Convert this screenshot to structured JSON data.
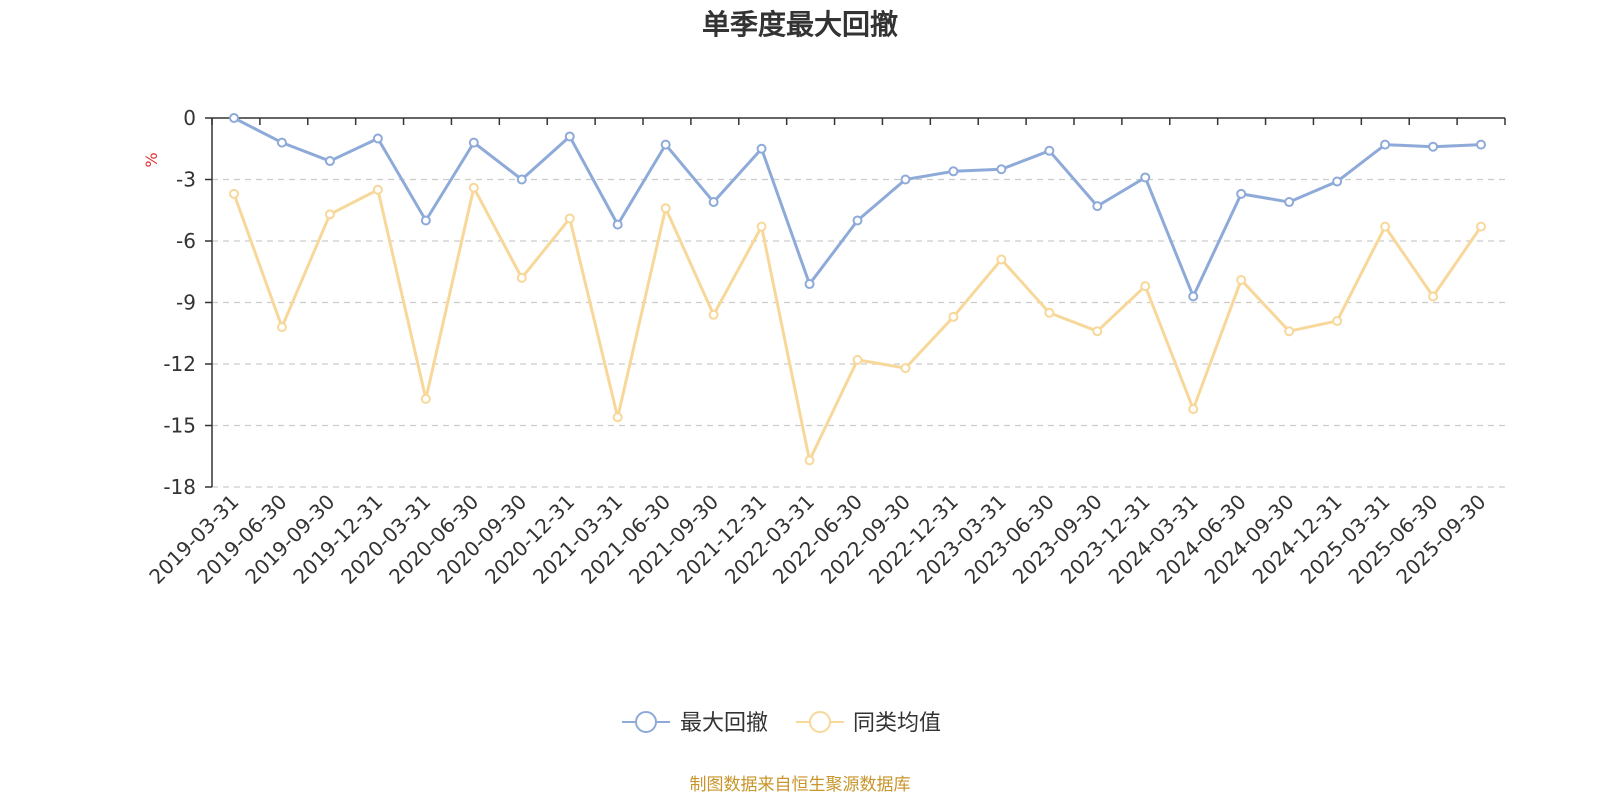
{
  "chart_data": {
    "type": "line",
    "title": "单季度最大回撤",
    "ylabel": "%",
    "ylim": [
      -18,
      0
    ],
    "yticks": [
      0,
      -3,
      -6,
      -9,
      -12,
      -15,
      -18
    ],
    "grid": true,
    "legend_position": "bottom",
    "source": "制图数据来自恒生聚源数据库",
    "categories": [
      "2019-03-31",
      "2019-06-30",
      "2019-09-30",
      "2019-12-31",
      "2020-03-31",
      "2020-06-30",
      "2020-09-30",
      "2020-12-31",
      "2021-03-31",
      "2021-06-30",
      "2021-09-30",
      "2021-12-31",
      "2022-03-31",
      "2022-06-30",
      "2022-09-30",
      "2022-12-31",
      "2023-03-31",
      "2023-06-30",
      "2023-09-30",
      "2023-12-31",
      "2024-03-31",
      "2024-06-30",
      "2024-09-30",
      "2024-12-31",
      "2025-03-31",
      "2025-06-30",
      "2025-09-30"
    ],
    "series": [
      {
        "name": "最大回撤",
        "color": "#8eaad8",
        "values": [
          0,
          -1.2,
          -2.1,
          -1.0,
          -5.0,
          -1.2,
          -3.0,
          -0.9,
          -5.2,
          -1.3,
          -4.1,
          -1.5,
          -8.1,
          -5.0,
          -3.0,
          -2.6,
          -2.5,
          -1.6,
          -4.3,
          -2.9,
          -8.7,
          -3.7,
          -4.1,
          -3.1,
          -1.3,
          -1.4,
          -1.3
        ]
      },
      {
        "name": "同类均值",
        "color": "#f8d89a",
        "values": [
          -3.7,
          -10.2,
          -4.7,
          -3.5,
          -13.7,
          -3.4,
          -7.8,
          -4.9,
          -14.6,
          -4.4,
          -9.6,
          -5.3,
          -16.7,
          -11.8,
          -12.2,
          -9.7,
          -6.9,
          -9.5,
          -10.4,
          -8.2,
          -14.2,
          -7.9,
          -10.4,
          -9.9,
          -5.3,
          -8.7,
          -5.3
        ]
      }
    ]
  }
}
